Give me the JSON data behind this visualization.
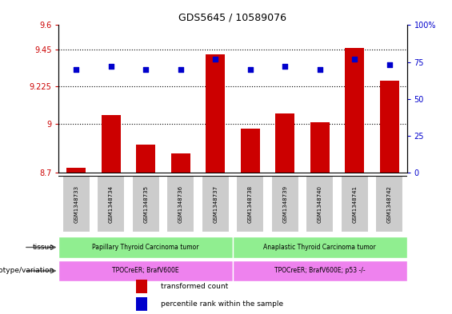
{
  "title": "GDS5645 / 10589076",
  "samples": [
    "GSM1348733",
    "GSM1348734",
    "GSM1348735",
    "GSM1348736",
    "GSM1348737",
    "GSM1348738",
    "GSM1348739",
    "GSM1348740",
    "GSM1348741",
    "GSM1348742"
  ],
  "bar_values": [
    8.73,
    9.05,
    8.87,
    8.82,
    9.42,
    8.97,
    9.06,
    9.01,
    9.46,
    9.26
  ],
  "dot_values": [
    70,
    72,
    70,
    70,
    77,
    70,
    72,
    70,
    77,
    73
  ],
  "bar_color": "#cc0000",
  "dot_color": "#0000cc",
  "ylim_left": [
    8.7,
    9.6
  ],
  "ylim_right": [
    0,
    100
  ],
  "yticks_left": [
    8.7,
    9.0,
    9.225,
    9.45,
    9.6
  ],
  "yticks_right": [
    0,
    25,
    50,
    75,
    100
  ],
  "ytick_labels_left": [
    "8.7",
    "9",
    "9.225",
    "9.45",
    "9.6"
  ],
  "ytick_labels_right": [
    "0",
    "25",
    "50",
    "75",
    "100%"
  ],
  "hlines": [
    9.0,
    9.225,
    9.45
  ],
  "tissue_groups": [
    {
      "label": "Papillary Thyroid Carcinoma tumor",
      "start": 0,
      "end": 5,
      "color": "#90ee90"
    },
    {
      "label": "Anaplastic Thyroid Carcinoma tumor",
      "start": 5,
      "end": 10,
      "color": "#90ee90"
    }
  ],
  "genotype_groups": [
    {
      "label": "TPOCreER; BrafV600E",
      "start": 0,
      "end": 5,
      "color": "#ee82ee"
    },
    {
      "label": "TPOCreER; BrafV600E; p53 -/-",
      "start": 5,
      "end": 10,
      "color": "#ee82ee"
    }
  ],
  "tissue_label": "tissue",
  "genotype_label": "genotype/variation",
  "legend_items": [
    {
      "color": "#cc0000",
      "label": "transformed count"
    },
    {
      "color": "#0000cc",
      "label": "percentile rank within the sample"
    }
  ],
  "bar_width": 0.55,
  "left_axis_color": "#cc0000",
  "right_axis_color": "#0000cc",
  "background_color": "#ffffff",
  "sample_box_color": "#cccccc",
  "figsize": [
    5.65,
    3.93
  ],
  "dpi": 100
}
